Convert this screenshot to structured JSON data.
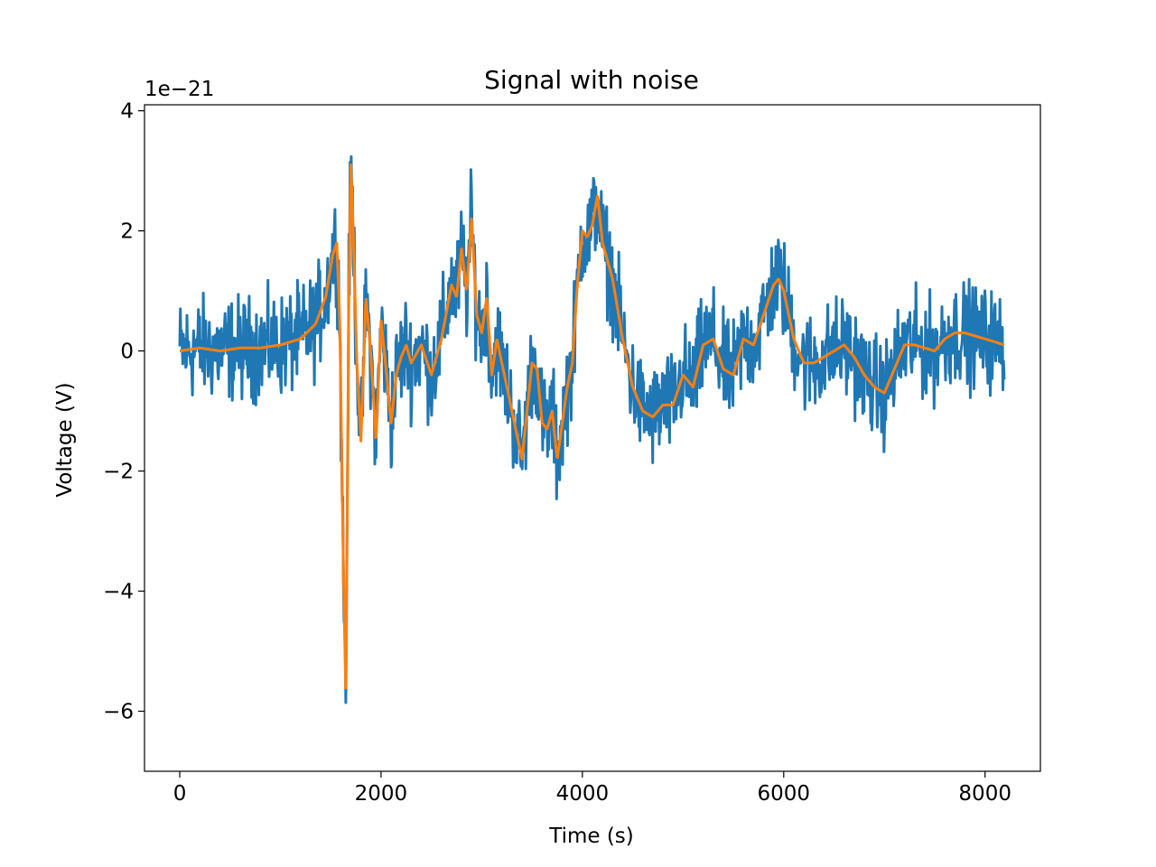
{
  "chart_data": {
    "type": "line",
    "title": "Signal with noise",
    "xlabel": "Time (s)",
    "ylabel": "Voltage (V)",
    "y_offset_label": "1e−21",
    "xlim": [
      -350,
      8550
    ],
    "ylim": [
      -7,
      4.1
    ],
    "x_ticks": [
      0,
      2000,
      4000,
      6000,
      8000
    ],
    "x_tick_labels": [
      "0",
      "2000",
      "4000",
      "6000",
      "8000"
    ],
    "y_ticks": [
      4,
      2,
      0,
      -2,
      -4,
      -6
    ],
    "y_tick_labels": [
      "4",
      "2",
      "0",
      "−2",
      "−4",
      "−6"
    ],
    "grid": false,
    "legend": false,
    "colors": {
      "noisy": "#1f77b4",
      "smooth": "#ff7f0e"
    },
    "series": [
      {
        "kind": "noisy",
        "x": [
          0,
          200,
          400,
          600,
          800,
          1000,
          1200,
          1350,
          1450,
          1520,
          1560,
          1590,
          1620,
          1650,
          1680,
          1700,
          1720,
          1760,
          1800,
          1850,
          1900,
          1950,
          2000,
          2050,
          2100,
          2150,
          2200,
          2250,
          2300,
          2400,
          2500,
          2600,
          2700,
          2750,
          2800,
          2850,
          2900,
          2950,
          3000,
          3050,
          3100,
          3150,
          3200,
          3300,
          3400,
          3500,
          3550,
          3600,
          3650,
          3700,
          3750,
          3800,
          3850,
          3900,
          3950,
          4000,
          4050,
          4100,
          4150,
          4200,
          4300,
          4400,
          4500,
          4600,
          4700,
          4800,
          4900,
          5000,
          5100,
          5200,
          5300,
          5400,
          5500,
          5600,
          5700,
          5800,
          5900,
          5950,
          6000,
          6100,
          6200,
          6300,
          6400,
          6500,
          6600,
          6700,
          6800,
          6900,
          7000,
          7100,
          7200,
          7300,
          7400,
          7500,
          7600,
          7700,
          7800,
          7900,
          8000,
          8100,
          8190
        ],
        "y": [
          0.0,
          0.05,
          0.0,
          0.05,
          0.05,
          0.1,
          0.2,
          0.45,
          0.9,
          1.6,
          1.8,
          0.5,
          -3.0,
          -5.8,
          1.0,
          3.1,
          2.2,
          -0.2,
          -1.5,
          0.9,
          -0.1,
          -1.5,
          0.5,
          -0.3,
          -1.2,
          -0.4,
          -0.1,
          0.1,
          -0.2,
          0.1,
          -0.4,
          0.2,
          1.1,
          0.9,
          1.7,
          1.0,
          2.2,
          0.6,
          0.3,
          0.9,
          -0.4,
          0.2,
          -0.2,
          -1.0,
          -1.8,
          -0.2,
          -0.3,
          -1.2,
          -1.3,
          -1.0,
          -1.8,
          -1.2,
          -0.6,
          -0.2,
          1.1,
          2.0,
          1.9,
          2.1,
          2.6,
          1.8,
          1.2,
          0.2,
          -0.6,
          -1.0,
          -1.1,
          -0.9,
          -0.9,
          -0.4,
          -0.6,
          0.1,
          0.2,
          -0.3,
          -0.4,
          0.2,
          0.1,
          0.6,
          1.1,
          1.2,
          1.0,
          0.2,
          -0.2,
          -0.2,
          -0.1,
          0.0,
          0.1,
          -0.1,
          -0.4,
          -0.6,
          -0.7,
          -0.3,
          0.1,
          0.1,
          0.05,
          0.0,
          0.2,
          0.3,
          0.3,
          0.25,
          0.2,
          0.15,
          0.1
        ],
        "noise_amplitude": 0.75
      },
      {
        "kind": "smooth",
        "x": [
          0,
          200,
          400,
          600,
          800,
          1000,
          1200,
          1350,
          1450,
          1520,
          1560,
          1590,
          1620,
          1650,
          1680,
          1700,
          1720,
          1760,
          1800,
          1850,
          1900,
          1950,
          2000,
          2050,
          2100,
          2150,
          2200,
          2250,
          2300,
          2400,
          2500,
          2600,
          2700,
          2750,
          2800,
          2850,
          2900,
          2950,
          3000,
          3050,
          3100,
          3150,
          3200,
          3300,
          3400,
          3500,
          3550,
          3600,
          3650,
          3700,
          3750,
          3800,
          3850,
          3900,
          3950,
          4000,
          4050,
          4100,
          4150,
          4200,
          4300,
          4400,
          4500,
          4600,
          4700,
          4800,
          4900,
          5000,
          5100,
          5200,
          5300,
          5400,
          5500,
          5600,
          5700,
          5800,
          5900,
          5950,
          6000,
          6100,
          6200,
          6300,
          6400,
          6500,
          6600,
          6700,
          6800,
          6900,
          7000,
          7100,
          7200,
          7300,
          7400,
          7500,
          7600,
          7700,
          7800,
          7900,
          8000,
          8100,
          8190
        ],
        "y": [
          0.0,
          0.05,
          0.0,
          0.05,
          0.05,
          0.1,
          0.2,
          0.45,
          0.9,
          1.6,
          1.8,
          0.5,
          -3.0,
          -5.8,
          1.0,
          3.1,
          2.2,
          -0.2,
          -1.5,
          0.9,
          -0.1,
          -1.5,
          0.5,
          -0.3,
          -1.2,
          -0.4,
          -0.1,
          0.1,
          -0.2,
          0.1,
          -0.4,
          0.2,
          1.1,
          0.9,
          1.7,
          1.0,
          2.2,
          0.6,
          0.3,
          0.9,
          -0.4,
          0.2,
          -0.2,
          -1.0,
          -1.8,
          -0.2,
          -0.3,
          -1.2,
          -1.3,
          -1.0,
          -1.8,
          -1.2,
          -0.6,
          -0.2,
          1.1,
          2.0,
          1.9,
          2.1,
          2.6,
          1.8,
          1.2,
          0.2,
          -0.6,
          -1.0,
          -1.1,
          -0.9,
          -0.9,
          -0.4,
          -0.6,
          0.1,
          0.2,
          -0.3,
          -0.4,
          0.2,
          0.1,
          0.6,
          1.1,
          1.2,
          1.0,
          0.2,
          -0.2,
          -0.2,
          -0.1,
          0.0,
          0.1,
          -0.1,
          -0.4,
          -0.6,
          -0.7,
          -0.3,
          0.1,
          0.1,
          0.05,
          0.0,
          0.2,
          0.3,
          0.3,
          0.25,
          0.2,
          0.15,
          0.1
        ]
      }
    ]
  }
}
